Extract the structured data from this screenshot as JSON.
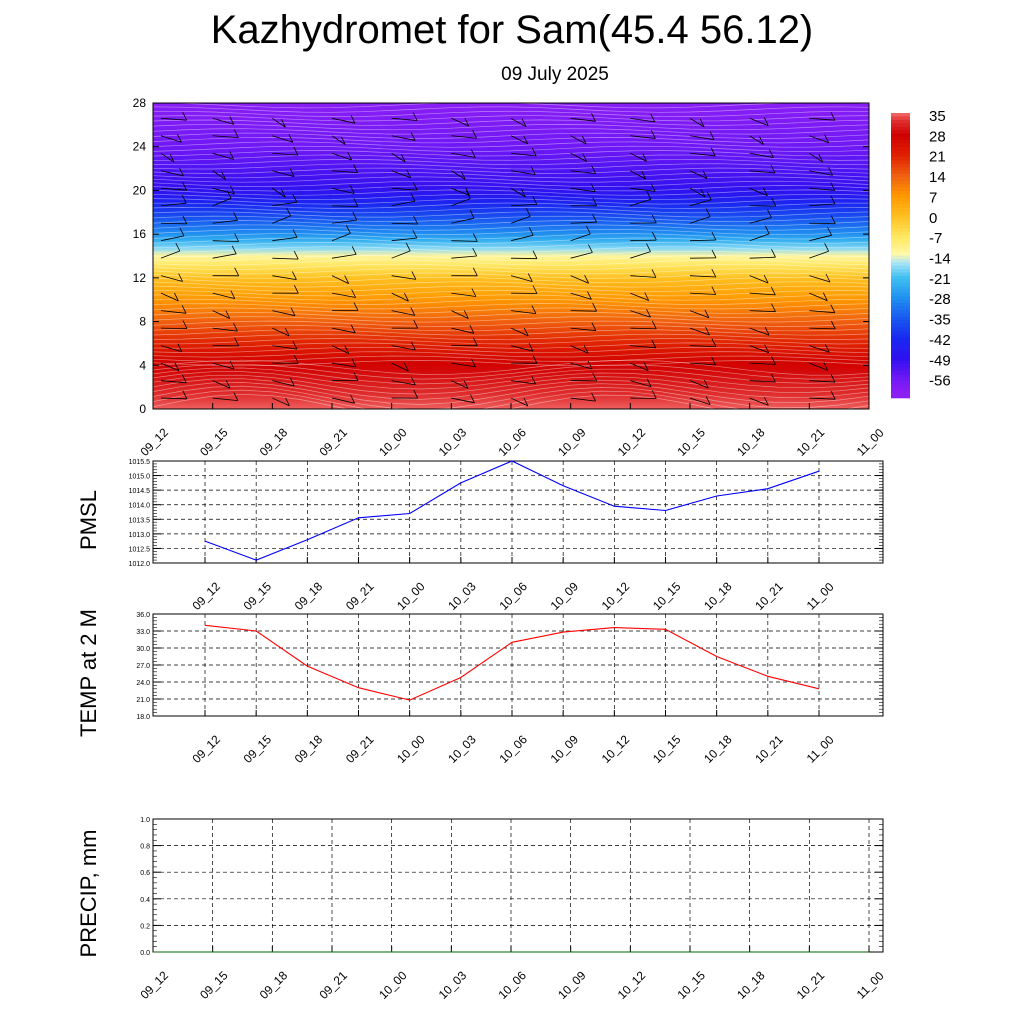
{
  "title": "Kazhydromet for Sam(45.4 56.12)",
  "subtitle": "09 July 2025",
  "chart_data": [
    {
      "type": "heatmap",
      "name": "cross-section",
      "x": [
        "09_12",
        "09_15",
        "09_18",
        "09_21",
        "10_00",
        "10_03",
        "10_06",
        "10_09",
        "10_12",
        "10_15",
        "10_18",
        "10_21",
        "11_00"
      ],
      "y_ticks": [
        0,
        4,
        8,
        12,
        16,
        20,
        24,
        28
      ],
      "ylim": [
        0,
        28
      ],
      "colorbar": {
        "labels": [
          35,
          28,
          21,
          14,
          7,
          0,
          -7,
          -14,
          -21,
          -28,
          -35,
          -42,
          -49,
          -56
        ],
        "colors": [
          "#f6a6ac",
          "#ff0000",
          "#d40000",
          "#f07010",
          "#ffa000",
          "#ffe040",
          "#ffffa0",
          "#b8e8f8",
          "#40c8f0",
          "#2090f0",
          "#1848f0",
          "#1010f0",
          "#5010f8",
          "#9020f8"
        ]
      },
      "temperature_profile": [
        {
          "level": 0,
          "value": 35
        },
        {
          "level": 4,
          "value": 28
        },
        {
          "level": 8,
          "value": 14
        },
        {
          "level": 12,
          "value": 0
        },
        {
          "level": 14,
          "value": -12
        },
        {
          "level": 16,
          "value": -28
        },
        {
          "level": 20,
          "value": -49
        },
        {
          "level": 24,
          "value": -56
        },
        {
          "level": 28,
          "value": -60
        }
      ],
      "grid": false,
      "wind_barbs": true
    },
    {
      "type": "line",
      "name": "pmsl",
      "ylabel": "PMSL",
      "x": [
        "09_12",
        "09_15",
        "09_18",
        "09_21",
        "10_00",
        "10_03",
        "10_06",
        "10_09",
        "10_12",
        "10_15",
        "10_18",
        "10_21",
        "11_00"
      ],
      "series": [
        {
          "values": [
            1012.75,
            1012.1,
            1012.8,
            1013.55,
            1013.7,
            1014.75,
            1015.5,
            1014.65,
            1013.95,
            1013.8,
            1014.3,
            1014.55,
            1015.15
          ],
          "color": "#0000ff"
        }
      ],
      "y_ticks": [
        "1012.0",
        "1012.5",
        "1013.0",
        "1013.5",
        "1014.0",
        "1014.5",
        "1015.0",
        "1015.5"
      ],
      "ylim": [
        1012.0,
        1015.5
      ],
      "grid": true
    },
    {
      "type": "line",
      "name": "temp2m",
      "ylabel": "TEMP at 2 M",
      "x": [
        "09_12",
        "09_15",
        "09_18",
        "09_21",
        "10_00",
        "10_03",
        "10_06",
        "10_09",
        "10_12",
        "10_15",
        "10_18",
        "10_21",
        "11_00"
      ],
      "series": [
        {
          "values": [
            34.0,
            33.0,
            26.8,
            23.0,
            20.8,
            24.8,
            31.0,
            32.8,
            33.6,
            33.3,
            28.5,
            25.0,
            22.8
          ],
          "color": "#ff0000"
        }
      ],
      "y_ticks": [
        "18.0",
        "21.0",
        "24.0",
        "27.0",
        "30.0",
        "33.0",
        "36.0"
      ],
      "ylim": [
        18.0,
        36.0
      ],
      "grid": true
    },
    {
      "type": "line",
      "name": "precip",
      "ylabel": "PRECIP, mm",
      "x": [
        "09_12",
        "09_15",
        "09_18",
        "09_21",
        "10_00",
        "10_03",
        "10_06",
        "10_09",
        "10_12",
        "10_15",
        "10_18",
        "10_21",
        "11_00"
      ],
      "series": [
        {
          "values": [
            0,
            0,
            0,
            0,
            0,
            0,
            0,
            0,
            0,
            0,
            0,
            0,
            0
          ],
          "color": "#006400"
        }
      ],
      "y_ticks": [
        "0.0",
        "0.2",
        "0.4",
        "0.6",
        "0.8",
        "1.0"
      ],
      "ylim": [
        0.0,
        1.0
      ],
      "grid": true
    }
  ]
}
